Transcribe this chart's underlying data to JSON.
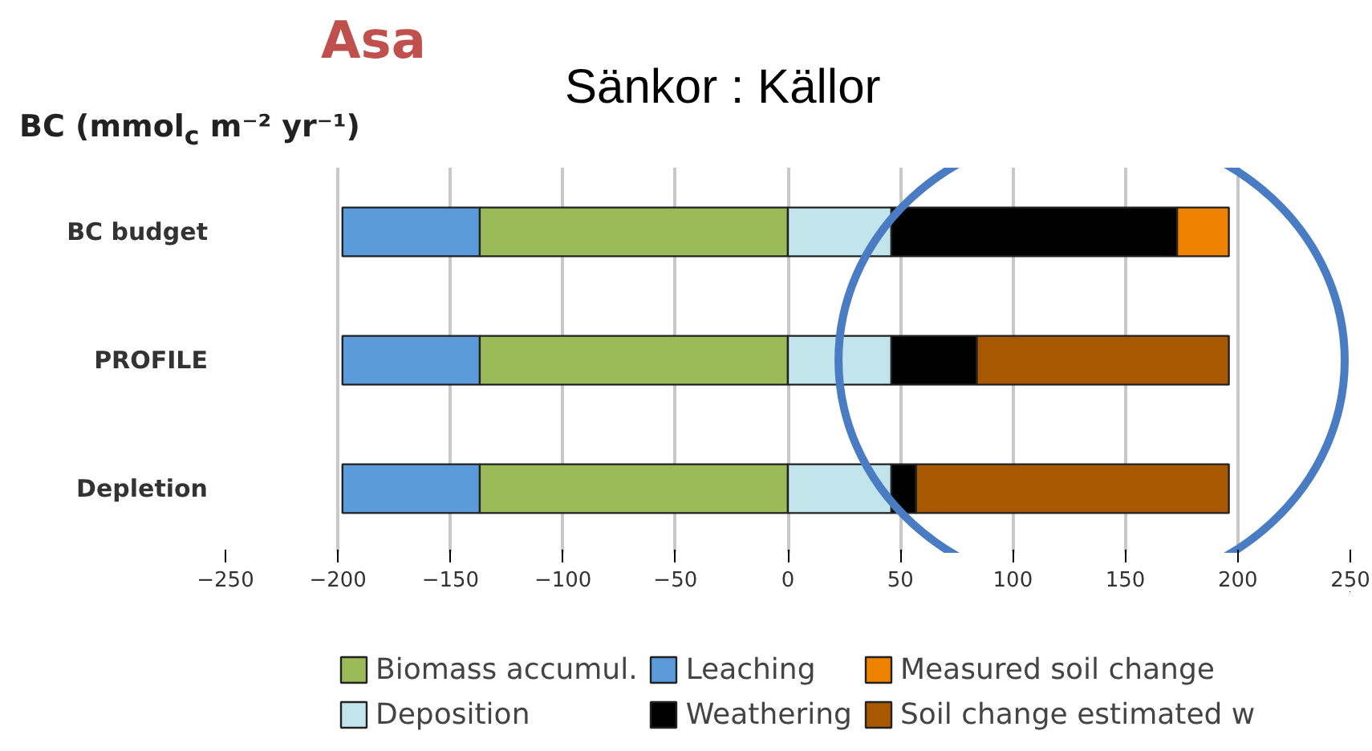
{
  "chart_data": {
    "type": "bar",
    "orientation": "horizontal",
    "stacked": true,
    "title": "Asa",
    "ylabel": "BC  (mmol$_{c}$ m⁻² yr⁻¹)",
    "annotations": [
      "Sänkor :  Källor"
    ],
    "categories": [
      "BC budget",
      "PROFILE",
      "Depletion"
    ],
    "series": [
      {
        "name": "Biomass accumul.",
        "color": "#9bbb59",
        "values": [
          -137,
          -137,
          -137
        ]
      },
      {
        "name": "Leaching",
        "color": "#5b9bdc",
        "values": [
          -61,
          -61,
          -61
        ]
      },
      {
        "name": "Deposition",
        "color": "#c2e5ec",
        "values": [
          46,
          46,
          46
        ]
      },
      {
        "name": "Weathering",
        "color": "#000000",
        "values": [
          127,
          38,
          11
        ]
      },
      {
        "name": "Measured soil change",
        "color": "#ef8200",
        "values": [
          23,
          null,
          null
        ]
      },
      {
        "name": "Soil change estimated w",
        "color": "#a85800",
        "values": [
          null,
          112,
          139
        ]
      }
    ],
    "xlim": [
      -250,
      250
    ],
    "xticks": [
      -250,
      -200,
      -150,
      -100,
      -50,
      0,
      50,
      100,
      150,
      200,
      250
    ],
    "grid": "x",
    "legend": "bottom"
  }
}
